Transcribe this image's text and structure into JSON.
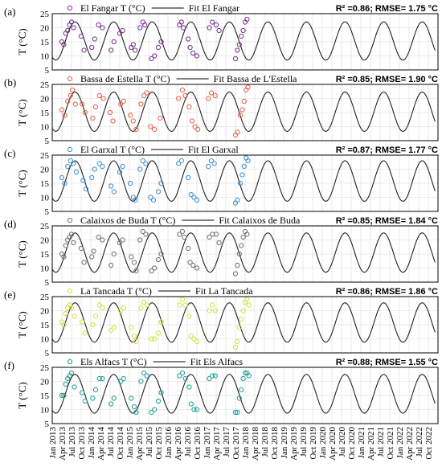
{
  "chart_data": [
    {
      "type": "line",
      "panel_label": "(a)",
      "ylabel": "T (°C)",
      "ylim": [
        5,
        25
      ],
      "yticks": [
        5,
        10,
        15,
        20,
        25
      ],
      "legend_obs": "El Fangar T (°C)",
      "legend_fit": "Fit El Fangar",
      "stats": "R² =0.86; RMSE= 1.75 °C",
      "marker_color": "#7B2D8E",
      "fit": {
        "mean": 15.3,
        "amplitude": 6.8,
        "peak_month_offset": 7.1
      },
      "series": [
        {
          "name": "El Fangar T (°C)",
          "x": [
            1.0,
            1.2,
            1.4,
            1.6,
            1.8,
            2.0,
            2.2,
            3.0,
            3.3,
            4.1,
            4.4,
            4.8,
            5.2,
            6.1,
            6.4,
            7.0,
            7.3,
            8.2,
            8.4,
            8.6,
            9.1,
            9.4,
            9.6,
            10.3,
            10.6,
            11.0,
            11.3,
            13.2,
            13.4,
            13.6,
            14.1,
            14.3,
            14.6,
            15.0,
            16.3,
            16.6,
            17.0,
            17.3,
            19.0,
            19.2,
            19.4,
            19.6,
            19.8,
            20.0,
            20.2
          ],
          "y": [
            15,
            14,
            18,
            19,
            21,
            22,
            20,
            17,
            12,
            13,
            16,
            21,
            20,
            12,
            15,
            18,
            19,
            13,
            14,
            12,
            20,
            22,
            21,
            9,
            10,
            13,
            15,
            21,
            22,
            20,
            16,
            13,
            11,
            10,
            20,
            22,
            21,
            19,
            9,
            12,
            14,
            17,
            19,
            22,
            23
          ]
        }
      ]
    },
    {
      "type": "line",
      "panel_label": "(b)",
      "ylabel": "T (°C)",
      "ylim": [
        5,
        25
      ],
      "yticks": [
        5,
        10,
        15,
        20,
        25
      ],
      "legend_obs": "Bassa de Estella T (°C)",
      "legend_fit": "Fit Bassa de L'Estella",
      "stats": "R² =0.85; RMSE= 1.90 °C",
      "marker_color": "#E8604A",
      "fit": {
        "mean": 15.3,
        "amplitude": 7.0,
        "peak_month_offset": 7.1
      },
      "series": [
        {
          "name": "Bassa de Estella T (°C)",
          "x": [
            1.0,
            1.3,
            1.6,
            1.9,
            2.1,
            2.4,
            3.1,
            3.4,
            4.2,
            4.5,
            4.9,
            5.3,
            6.0,
            6.3,
            7.1,
            7.4,
            8.1,
            8.4,
            8.7,
            9.2,
            9.5,
            9.8,
            10.2,
            10.6,
            11.2,
            13.1,
            13.5,
            13.8,
            14.2,
            14.5,
            14.8,
            15.1,
            16.2,
            16.5,
            16.9,
            19.0,
            19.2,
            19.5,
            19.7,
            19.9,
            20.1,
            20.3
          ],
          "y": [
            16,
            14,
            19,
            21,
            23,
            18,
            18,
            15,
            13,
            17,
            21,
            20,
            15,
            12,
            18,
            19,
            14,
            12,
            9,
            18,
            21,
            22,
            10,
            9,
            13,
            20,
            23,
            21,
            17,
            12,
            10,
            9,
            20,
            22,
            21,
            7,
            8,
            14,
            16,
            19,
            23,
            24
          ]
        }
      ]
    },
    {
      "type": "line",
      "panel_label": "(c)",
      "ylabel": "T (°C)",
      "ylim": [
        5,
        25
      ],
      "yticks": [
        5,
        10,
        15,
        20,
        25
      ],
      "legend_obs": "El Garxal T (°C)",
      "legend_fit": "Fit El Garxal",
      "stats": "R² =0.87; RMSE= 1.77 °C",
      "marker_color": "#3A8FD6",
      "fit": {
        "mean": 15.8,
        "amplitude": 7.2,
        "peak_month_offset": 7.1
      },
      "series": [
        {
          "name": "El Garxal T (°C)",
          "x": [
            1.0,
            1.3,
            1.6,
            1.9,
            2.2,
            2.5,
            3.2,
            3.5,
            4.1,
            4.4,
            4.9,
            5.2,
            6.1,
            6.4,
            7.0,
            7.3,
            8.1,
            8.4,
            8.6,
            9.1,
            9.4,
            9.7,
            10.2,
            10.5,
            11.0,
            11.3,
            13.1,
            13.4,
            14.1,
            14.4,
            14.7,
            15.0,
            16.2,
            16.5,
            16.8,
            19.0,
            19.2,
            19.5,
            19.7,
            19.9,
            20.1,
            20.3
          ],
          "y": [
            17,
            15,
            21,
            23,
            22,
            19,
            16,
            13,
            17,
            20,
            22,
            21,
            14,
            12,
            19,
            21,
            15,
            10,
            9,
            20,
            23,
            22,
            10,
            9,
            12,
            15,
            22,
            23,
            17,
            11,
            10,
            9,
            21,
            23,
            22,
            8,
            9,
            15,
            18,
            21,
            24,
            23
          ]
        }
      ]
    },
    {
      "type": "line",
      "panel_label": "(d)",
      "ylabel": "T (°C)",
      "ylim": [
        5,
        25
      ],
      "yticks": [
        5,
        10,
        15,
        20,
        25
      ],
      "legend_obs": "Calaixos de Buda T (°C)",
      "legend_fit": "Fit Calaixos de Buda",
      "stats": "R² =0.85; RMSE= 1.84 °C",
      "marker_color": "#707070",
      "fit": {
        "mean": 15.5,
        "amplitude": 7.0,
        "peak_month_offset": 7.1
      },
      "series": [
        {
          "name": "Calaixos de Buda T (°C)",
          "x": [
            1.0,
            1.2,
            1.4,
            1.6,
            1.8,
            2.0,
            2.2,
            3.0,
            3.3,
            4.1,
            4.3,
            4.8,
            5.2,
            6.1,
            6.4,
            7.0,
            7.3,
            8.2,
            8.5,
            8.7,
            9.1,
            9.4,
            9.7,
            10.3,
            10.6,
            11.0,
            11.3,
            13.2,
            13.5,
            13.7,
            14.1,
            14.3,
            14.6,
            15.0,
            16.3,
            16.6,
            17.0,
            17.3,
            19.0,
            19.2,
            19.4,
            19.6,
            19.8,
            20.0,
            20.2
          ],
          "y": [
            15,
            14,
            18,
            20,
            21,
            22,
            19,
            17,
            12,
            14,
            16,
            21,
            20,
            11,
            15,
            19,
            20,
            14,
            12,
            9,
            20,
            23,
            22,
            9,
            10,
            13,
            15,
            22,
            23,
            21,
            17,
            12,
            11,
            10,
            21,
            22,
            22,
            19,
            8,
            11,
            15,
            18,
            21,
            23,
            22
          ]
        }
      ]
    },
    {
      "type": "line",
      "panel_label": "(e)",
      "ylabel": "T (°C)",
      "ylim": [
        5,
        25
      ],
      "yticks": [
        5,
        10,
        15,
        20,
        25
      ],
      "legend_obs": "La Tancada T (°C)",
      "legend_fit": "Fit La Tancada",
      "stats": "R² =0.86; RMSE= 1.86 °C",
      "marker_color": "#D6E23B",
      "fit": {
        "mean": 15.8,
        "amplitude": 7.0,
        "peak_month_offset": 7.1
      },
      "series": [
        {
          "name": "La Tancada T (°C)",
          "x": [
            1.0,
            1.2,
            1.4,
            1.6,
            1.8,
            2.0,
            2.3,
            3.1,
            3.4,
            4.2,
            4.5,
            4.9,
            5.2,
            6.1,
            6.4,
            7.1,
            7.4,
            8.2,
            8.5,
            8.7,
            9.2,
            9.5,
            9.8,
            10.3,
            10.6,
            11.0,
            11.3,
            13.2,
            13.5,
            13.8,
            14.2,
            14.4,
            14.7,
            15.0,
            16.3,
            16.6,
            16.9,
            19.0,
            19.2,
            19.4,
            19.6,
            19.8,
            20.0,
            20.2,
            20.4
          ],
          "y": [
            16,
            15,
            19,
            21,
            22,
            21,
            18,
            16,
            12,
            15,
            18,
            22,
            21,
            13,
            14,
            20,
            21,
            14,
            11,
            9,
            21,
            23,
            22,
            10,
            10,
            12,
            16,
            22,
            24,
            22,
            18,
            11,
            10,
            9,
            20,
            22,
            20,
            7,
            9,
            14,
            17,
            20,
            23,
            24,
            22
          ]
        }
      ]
    },
    {
      "type": "line",
      "panel_label": "(f)",
      "ylabel": "T (°C)",
      "ylim": [
        5,
        25
      ],
      "yticks": [
        5,
        10,
        15,
        20,
        25
      ],
      "legend_obs": "Els Alfacs T (°C)",
      "legend_fit": "Fit Els Alfacs",
      "stats": "R² =0.88; RMSE= 1.55 °C",
      "marker_color": "#1A9E96",
      "fit": {
        "mean": 15.6,
        "amplitude": 6.9,
        "peak_month_offset": 7.1
      },
      "series": [
        {
          "name": "Els Alfacs T (°C)",
          "x": [
            1.0,
            1.2,
            1.4,
            1.6,
            1.8,
            2.0,
            2.3,
            3.1,
            3.4,
            4.2,
            4.5,
            4.9,
            5.2,
            6.1,
            6.4,
            7.1,
            7.4,
            8.2,
            8.5,
            8.7,
            9.2,
            9.5,
            9.8,
            10.3,
            10.6,
            11.0,
            11.3,
            13.2,
            13.5,
            13.8,
            14.2,
            14.4,
            14.7,
            15.0,
            16.3,
            16.6,
            16.9,
            19.0,
            19.2,
            19.4,
            19.6,
            19.8,
            20.0,
            20.2,
            20.4
          ],
          "y": [
            15,
            15,
            19,
            21,
            22,
            23,
            18,
            16,
            13,
            14,
            17,
            21,
            21,
            12,
            14,
            20,
            21,
            14,
            11,
            9,
            20,
            23,
            22,
            9,
            10,
            13,
            16,
            22,
            23,
            21,
            18,
            12,
            10,
            10,
            21,
            22,
            22,
            9,
            9,
            14,
            17,
            21,
            23,
            23,
            22
          ]
        }
      ]
    }
  ],
  "x_axis": {
    "tick_labels": [
      "Jan 2013",
      "Apr 2013",
      "Jul 2013",
      "Oct 2013",
      "Jan 2014",
      "Apr 2014",
      "Jul 2014",
      "Oct 2014",
      "Jan 2015",
      "Apr 2015",
      "Jul 2015",
      "Oct 2015",
      "Jan 2016",
      "Apr 2016",
      "Jul 2016",
      "Oct 2016",
      "Jan 2017",
      "Apr 2017",
      "Jul 2017",
      "Oct 2017",
      "Jan 2018",
      "Apr 2018",
      "Jul 2018",
      "Oct 2018",
      "Jan 2019",
      "Apr 2019",
      "Jul 2019",
      "Oct 2019",
      "Jan 2020",
      "Apr 2020",
      "Jul 2020",
      "Oct 2020",
      "Jan 2021",
      "Apr 2021",
      "Jul 2021",
      "Oct 2021",
      "Jan 2022",
      "Apr 2022",
      "Jul 2022",
      "Oct 2022"
    ],
    "range_quarters": [
      0,
      40
    ]
  }
}
